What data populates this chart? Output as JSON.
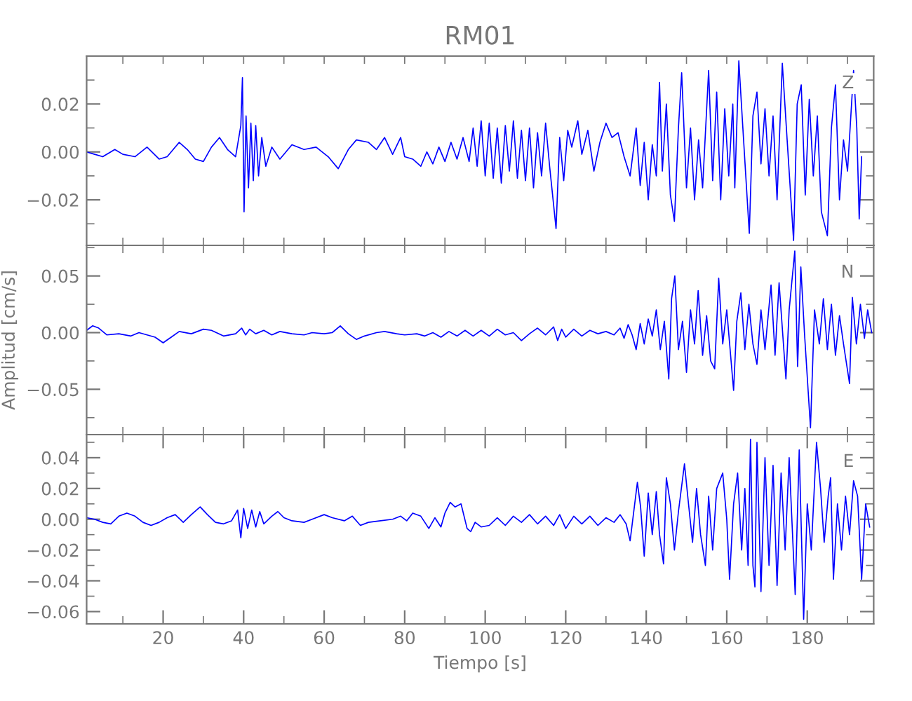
{
  "chart_data": [
    {
      "type": "line",
      "title": "RM01",
      "annotations": [
        "Z"
      ],
      "tick_labels": "y",
      "grid": false,
      "legend": false,
      "xlim": [
        1,
        196.5
      ],
      "ylim": [
        -0.039,
        0.04
      ],
      "xticks": [
        {
          "value": 10,
          "label": null
        },
        {
          "value": 20,
          "label": null
        },
        {
          "value": 30,
          "label": null
        },
        {
          "value": 40,
          "label": null
        },
        {
          "value": 50,
          "label": null
        },
        {
          "value": 60,
          "label": null
        },
        {
          "value": 70,
          "label": null
        },
        {
          "value": 80,
          "label": null
        },
        {
          "value": 90,
          "label": null
        },
        {
          "value": 100,
          "label": null
        },
        {
          "value": 110,
          "label": null
        },
        {
          "value": 120,
          "label": null
        },
        {
          "value": 130,
          "label": null
        },
        {
          "value": 140,
          "label": null
        },
        {
          "value": 150,
          "label": null
        },
        {
          "value": 160,
          "label": null
        },
        {
          "value": 170,
          "label": null
        },
        {
          "value": 180,
          "label": null
        },
        {
          "value": 190,
          "label": null
        }
      ],
      "yticks": [
        {
          "value": -0.03,
          "label": null
        },
        {
          "value": -0.02,
          "label": "−0.02"
        },
        {
          "value": -0.01,
          "label": null
        },
        {
          "value": 0,
          "label": "0.00"
        },
        {
          "value": 0.01,
          "label": null
        },
        {
          "value": 0.02,
          "label": "0.02"
        },
        {
          "value": 0.03,
          "label": null
        }
      ],
      "series": [
        {
          "color": "#0000ff",
          "x": [
            1,
            3,
            5,
            8,
            10,
            13,
            16,
            19,
            21,
            24,
            26,
            28,
            30,
            32,
            34,
            36,
            38,
            39.3,
            39.7,
            40.1,
            40.6,
            41.2,
            41.8,
            42.4,
            43,
            43.7,
            44.5,
            45.5,
            47,
            49,
            52,
            55,
            58,
            61,
            63.5,
            66,
            68,
            71,
            73,
            75,
            77,
            79,
            80,
            82,
            84,
            85.5,
            87,
            88.5,
            90,
            91.5,
            93,
            94.5,
            96,
            97,
            98,
            99,
            100,
            101,
            102,
            103,
            104,
            105,
            106,
            107,
            108,
            109,
            110,
            111,
            112,
            113,
            114,
            115,
            116,
            117.6,
            118.5,
            119.5,
            120.5,
            121.5,
            123,
            124,
            125.5,
            127,
            128.5,
            130,
            131.5,
            133,
            134.5,
            136,
            137.5,
            138.5,
            139.5,
            140.5,
            141.5,
            142.5,
            143.3,
            144,
            145,
            146,
            147,
            148,
            148.8,
            150,
            151,
            152,
            153,
            154,
            155.5,
            156.5,
            157.5,
            158.5,
            159.5,
            160.5,
            161.5,
            162,
            163,
            164,
            165.6,
            166.5,
            167.5,
            168.5,
            169.5,
            170.5,
            171.5,
            172.5,
            173.8,
            175,
            176.6,
            177.5,
            178.5,
            179.5,
            180.5,
            181.5,
            182.5,
            183.5,
            185,
            186,
            187,
            188,
            189,
            190,
            191.5,
            192.3,
            192.9,
            193.5
          ],
          "values": [
            0.0,
            -0.001,
            -0.002,
            0.001,
            -0.001,
            -0.002,
            0.002,
            -0.003,
            -0.002,
            0.004,
            0.001,
            -0.003,
            -0.004,
            0.002,
            0.006,
            0.001,
            -0.002,
            0.011,
            0.031,
            -0.025,
            0.015,
            -0.015,
            0.012,
            -0.012,
            0.011,
            -0.01,
            0.006,
            -0.006,
            0.002,
            -0.003,
            0.003,
            0.001,
            0.002,
            -0.002,
            -0.007,
            0.001,
            0.005,
            0.004,
            0.001,
            0.006,
            -0.001,
            0.006,
            -0.002,
            -0.003,
            -0.006,
            0.0,
            -0.005,
            0.002,
            -0.004,
            0.004,
            -0.003,
            0.006,
            -0.004,
            0.01,
            -0.006,
            0.013,
            -0.01,
            0.012,
            -0.011,
            0.01,
            -0.013,
            0.011,
            -0.008,
            0.013,
            -0.011,
            0.009,
            -0.012,
            0.01,
            -0.015,
            0.008,
            -0.01,
            0.012,
            -0.006,
            -0.032,
            0.006,
            -0.012,
            0.009,
            0.002,
            0.013,
            -0.001,
            0.009,
            -0.008,
            0.004,
            0.012,
            0.006,
            0.008,
            -0.002,
            -0.01,
            0.01,
            -0.014,
            0.004,
            -0.02,
            0.003,
            -0.01,
            0.029,
            -0.008,
            0.02,
            -0.018,
            -0.029,
            0.01,
            0.033,
            -0.015,
            0.01,
            -0.02,
            0.005,
            -0.015,
            0.034,
            -0.012,
            0.025,
            -0.02,
            0.018,
            -0.01,
            0.02,
            -0.015,
            0.038,
            0.01,
            -0.034,
            0.015,
            0.025,
            -0.005,
            0.018,
            -0.01,
            0.015,
            -0.02,
            0.037,
            0.005,
            -0.037,
            0.02,
            0.028,
            -0.018,
            0.022,
            -0.01,
            0.015,
            -0.025,
            -0.035,
            0.01,
            0.028,
            -0.02,
            0.005,
            -0.008,
            0.034,
            0.01,
            -0.028,
            -0.002
          ]
        }
      ]
    },
    {
      "type": "line",
      "annotations": [
        "N"
      ],
      "ylabel": "Amplitud [cm/s]",
      "tick_labels": "y",
      "grid": false,
      "legend": false,
      "xlim": [
        1,
        196.5
      ],
      "ylim": [
        -0.09,
        0.077
      ],
      "xticks": [
        {
          "value": 10,
          "label": null
        },
        {
          "value": 20,
          "label": null
        },
        {
          "value": 30,
          "label": null
        },
        {
          "value": 40,
          "label": null
        },
        {
          "value": 50,
          "label": null
        },
        {
          "value": 60,
          "label": null
        },
        {
          "value": 70,
          "label": null
        },
        {
          "value": 80,
          "label": null
        },
        {
          "value": 90,
          "label": null
        },
        {
          "value": 100,
          "label": null
        },
        {
          "value": 110,
          "label": null
        },
        {
          "value": 120,
          "label": null
        },
        {
          "value": 130,
          "label": null
        },
        {
          "value": 140,
          "label": null
        },
        {
          "value": 150,
          "label": null
        },
        {
          "value": 160,
          "label": null
        },
        {
          "value": 170,
          "label": null
        },
        {
          "value": 180,
          "label": null
        },
        {
          "value": 190,
          "label": null
        }
      ],
      "yticks": [
        {
          "value": -0.075,
          "label": null
        },
        {
          "value": -0.05,
          "label": "−0.05"
        },
        {
          "value": -0.025,
          "label": null
        },
        {
          "value": 0,
          "label": "0.00"
        },
        {
          "value": 0.025,
          "label": null
        },
        {
          "value": 0.05,
          "label": "0.05"
        },
        {
          "value": 0.075,
          "label": null
        }
      ],
      "series": [
        {
          "color": "#0000ff",
          "x": [
            1,
            2.5,
            4,
            6,
            9,
            12,
            14,
            16,
            18,
            20,
            22,
            24,
            27,
            30,
            32,
            35,
            38,
            39.5,
            40.5,
            41.5,
            43,
            45,
            47,
            49,
            52,
            55,
            57,
            60,
            62,
            64,
            66,
            68,
            70,
            73,
            75,
            78,
            80,
            83,
            85,
            87,
            89,
            91,
            93,
            95,
            97,
            99,
            101,
            103,
            105,
            107,
            109,
            111,
            113,
            115,
            117,
            118,
            119,
            120,
            122,
            124,
            126,
            128,
            130,
            132,
            133.5,
            134.5,
            135.5,
            136.5,
            137.5,
            138.5,
            139.5,
            140.5,
            141.5,
            142.5,
            143.5,
            144.5,
            145.6,
            146.3,
            147.1,
            148,
            149,
            150,
            151,
            152,
            152.9,
            154,
            155,
            156,
            157,
            158,
            159,
            160,
            161.7,
            162.5,
            163.5,
            164.5,
            165.5,
            166.5,
            167.5,
            168.5,
            169.5,
            171,
            172,
            173,
            174.7,
            175.5,
            176.9,
            177.6,
            178.4,
            179.3,
            180.8,
            181.8,
            183,
            184,
            185,
            186,
            187,
            188,
            189,
            190.5,
            191.2,
            192.2,
            193.2,
            194.2,
            195,
            196
          ],
          "values": [
            0.002,
            0.006,
            0.004,
            -0.002,
            -0.001,
            -0.003,
            0.0,
            -0.002,
            -0.004,
            -0.009,
            -0.004,
            0.001,
            -0.001,
            0.003,
            0.002,
            -0.003,
            -0.001,
            0.004,
            -0.002,
            0.003,
            -0.001,
            0.002,
            -0.002,
            0.001,
            -0.001,
            -0.002,
            0.0,
            -0.001,
            0.0,
            0.006,
            -0.001,
            -0.006,
            -0.003,
            0.0,
            0.001,
            -0.001,
            -0.002,
            -0.001,
            -0.003,
            0.0,
            -0.004,
            0.001,
            -0.003,
            0.002,
            -0.003,
            0.002,
            -0.003,
            0.003,
            -0.002,
            0.0,
            -0.007,
            -0.001,
            0.004,
            -0.002,
            0.005,
            -0.007,
            0.003,
            -0.004,
            0.003,
            -0.003,
            0.002,
            -0.001,
            0.001,
            -0.002,
            0.004,
            -0.005,
            0.007,
            -0.002,
            -0.015,
            0.008,
            -0.01,
            0.012,
            -0.003,
            0.02,
            -0.015,
            0.01,
            -0.041,
            0.03,
            0.05,
            -0.015,
            0.01,
            -0.035,
            0.02,
            -0.01,
            0.037,
            -0.02,
            0.015,
            -0.025,
            -0.032,
            0.048,
            -0.01,
            0.02,
            -0.051,
            0.01,
            0.035,
            -0.015,
            0.025,
            -0.01,
            -0.028,
            0.02,
            -0.015,
            0.042,
            -0.02,
            0.044,
            -0.041,
            0.02,
            0.072,
            -0.03,
            0.058,
            0.0,
            -0.084,
            0.02,
            -0.01,
            0.03,
            -0.015,
            0.025,
            -0.02,
            0.015,
            -0.01,
            -0.045,
            0.031,
            -0.01,
            0.025,
            -0.005,
            0.02,
            0.0
          ]
        }
      ]
    },
    {
      "type": "line",
      "annotations": [
        "E"
      ],
      "xlabel": "Tiempo [s]",
      "grid": false,
      "legend": false,
      "xlim": [
        1,
        196.5
      ],
      "ylim": [
        -0.068,
        0.055
      ],
      "xticks": [
        {
          "value": 10,
          "label": null
        },
        20,
        {
          "value": 30,
          "label": null
        },
        40,
        {
          "value": 50,
          "label": null
        },
        60,
        {
          "value": 70,
          "label": null
        },
        80,
        {
          "value": 90,
          "label": null
        },
        100,
        {
          "value": 110,
          "label": null
        },
        120,
        {
          "value": 130,
          "label": null
        },
        140,
        {
          "value": 150,
          "label": null
        },
        160,
        {
          "value": 170,
          "label": null
        },
        180,
        {
          "value": 190,
          "label": null
        }
      ],
      "yticks": [
        {
          "value": -0.06,
          "label": "−0.06"
        },
        {
          "value": -0.05,
          "label": null
        },
        {
          "value": -0.04,
          "label": "−0.04"
        },
        {
          "value": -0.03,
          "label": null
        },
        {
          "value": -0.02,
          "label": "−0.02"
        },
        {
          "value": -0.01,
          "label": null
        },
        {
          "value": 0,
          "label": "0.00"
        },
        {
          "value": 0.01,
          "label": null
        },
        {
          "value": 0.02,
          "label": "0.02"
        },
        {
          "value": 0.03,
          "label": null
        },
        {
          "value": 0.04,
          "label": "0.04"
        },
        {
          "value": 0.05,
          "label": null
        }
      ],
      "series": [
        {
          "color": "#0000ff",
          "x": [
            1,
            3,
            5,
            7,
            9,
            11,
            13,
            15,
            17,
            19,
            21,
            23,
            25,
            27,
            29.2,
            31,
            33,
            35,
            37,
            38.5,
            39.3,
            40,
            41,
            42,
            43,
            44,
            45,
            47,
            48.5,
            50,
            52,
            55,
            57,
            60,
            62,
            65,
            67,
            69,
            71,
            74,
            77,
            79,
            80.5,
            82,
            84,
            86,
            87.5,
            89,
            90,
            91.3,
            92.5,
            94,
            95.5,
            96.4,
            97.5,
            99,
            101,
            103,
            105,
            107,
            109,
            111,
            113,
            115,
            117,
            118.5,
            120,
            122,
            124,
            126,
            128,
            130,
            132,
            133.5,
            135,
            136,
            137.8,
            138.6,
            139.5,
            140.5,
            141.5,
            142.5,
            143.3,
            144.3,
            145,
            146,
            147,
            148,
            149.5,
            150.5,
            151.5,
            152.5,
            153.5,
            154.7,
            155.5,
            156.5,
            157.5,
            159,
            160,
            160.7,
            161.7,
            162.7,
            163.7,
            164.5,
            165.3,
            165.9,
            166.5,
            167,
            167.5,
            168.5,
            169.5,
            170.5,
            171.5,
            172.5,
            173.5,
            174.5,
            175.5,
            177,
            178,
            179.1,
            180,
            181,
            182.3,
            183.3,
            184.2,
            185.2,
            185.8,
            186.5,
            187.5,
            188.5,
            189.5,
            190.5,
            191.5,
            192.5,
            193.5,
            194.5,
            195.5
          ],
          "values": [
            0.001,
            0.0,
            -0.002,
            -0.003,
            0.002,
            0.004,
            0.002,
            -0.002,
            -0.004,
            -0.002,
            0.001,
            0.003,
            -0.002,
            0.003,
            0.008,
            0.003,
            -0.002,
            -0.003,
            -0.001,
            0.006,
            -0.012,
            0.007,
            -0.006,
            0.006,
            -0.005,
            0.005,
            -0.003,
            0.002,
            0.005,
            0.001,
            -0.001,
            -0.002,
            0.0,
            0.003,
            0.001,
            -0.001,
            0.002,
            -0.004,
            -0.002,
            -0.001,
            0.0,
            0.002,
            -0.001,
            0.004,
            0.002,
            -0.006,
            0.001,
            -0.005,
            0.004,
            0.011,
            0.008,
            0.01,
            -0.006,
            -0.008,
            -0.002,
            -0.005,
            -0.004,
            0.001,
            -0.004,
            0.002,
            -0.002,
            0.003,
            -0.003,
            0.002,
            -0.004,
            0.003,
            -0.006,
            0.002,
            -0.003,
            0.002,
            -0.004,
            0.001,
            -0.002,
            0.003,
            -0.003,
            -0.014,
            0.024,
            0.008,
            -0.024,
            0.017,
            -0.01,
            0.018,
            -0.01,
            -0.029,
            0.027,
            0.01,
            -0.02,
            0.005,
            0.036,
            0.01,
            -0.015,
            0.02,
            -0.01,
            -0.03,
            0.015,
            -0.02,
            0.02,
            0.03,
            0.0,
            -0.039,
            0.01,
            0.03,
            -0.02,
            0.02,
            -0.03,
            0.052,
            -0.03,
            -0.044,
            0.05,
            -0.047,
            0.04,
            -0.03,
            0.035,
            -0.043,
            0.03,
            -0.02,
            0.04,
            -0.049,
            0.045,
            -0.065,
            0.01,
            -0.02,
            0.05,
            0.02,
            -0.015,
            0.015,
            0.027,
            -0.039,
            0.01,
            -0.02,
            0.015,
            -0.01,
            0.025,
            0.015,
            -0.039,
            0.01,
            -0.005
          ]
        }
      ]
    }
  ]
}
